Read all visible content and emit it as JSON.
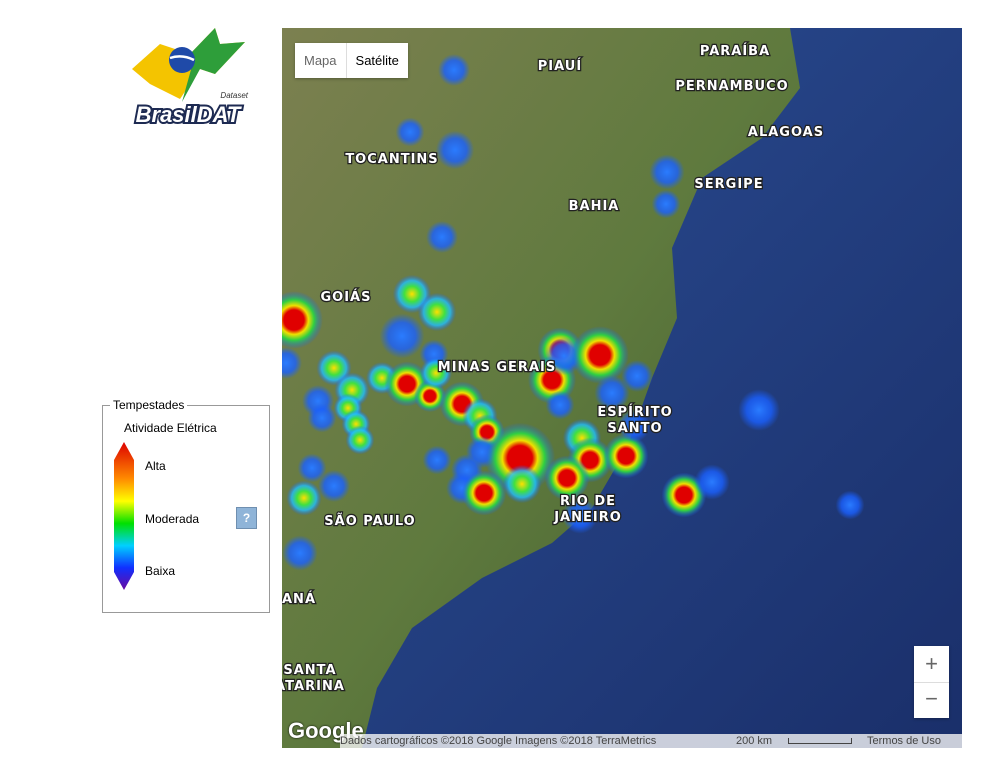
{
  "logo": {
    "name": "BrasilDAT",
    "tag": "Dataset"
  },
  "legend": {
    "title": "Tempestades",
    "subtitle": "Atividade Elétrica",
    "levels": [
      "Alta",
      "Moderada",
      "Baixa"
    ],
    "help": "?"
  },
  "map": {
    "type_buttons": [
      "Mapa",
      "Satélite"
    ],
    "states": [
      [
        "PIAUÍ"
      ],
      [
        "PARAÍBA"
      ],
      [
        "PERNAMBUCO"
      ],
      [
        "ALAGOAS"
      ],
      [
        "TOCANTINS"
      ],
      [
        "SERGIPE"
      ],
      [
        "BAHIA"
      ],
      [
        "GOIÁS"
      ],
      [
        "MINAS GERAIS"
      ],
      [
        "ESPÍRITO",
        "SANTO"
      ],
      [
        "SÃO PAULO"
      ],
      [
        "RIO DE",
        "JANEIRO"
      ],
      [
        "ANÁ"
      ],
      [
        "SANTA",
        "ATARINA"
      ]
    ],
    "zoom": [
      "+",
      "−"
    ],
    "footer": {
      "brand": "Google",
      "attribution": "Dados cartográficos ©2018 Google Imagens ©2018 TerraMetrics",
      "scale": "200 km",
      "terms": "Termos de Uso"
    }
  }
}
